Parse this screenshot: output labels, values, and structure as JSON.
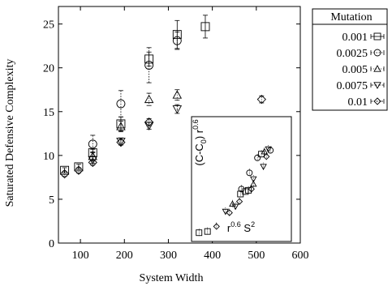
{
  "chart_data": [
    {
      "type": "scatter",
      "title": "",
      "xlabel": "System Width",
      "ylabel": "Saturated Defensive Complexity",
      "xlim": [
        50,
        600
      ],
      "ylim": [
        0,
        27
      ],
      "xticks": [
        100,
        200,
        300,
        400,
        500,
        600
      ],
      "yticks": [
        0,
        5,
        10,
        15,
        20,
        25
      ],
      "grid": false,
      "legend": {
        "title": "Mutation",
        "placement": "outside-right"
      },
      "series": [
        {
          "name": "0.001",
          "marker": "square",
          "points": [
            {
              "x": 64,
              "y": 8.3,
              "err": 0.3
            },
            {
              "x": 96,
              "y": 8.7,
              "err": 0.3
            },
            {
              "x": 128,
              "y": 10.3,
              "err": 0.4
            },
            {
              "x": 192,
              "y": 13.6,
              "err": 0.8
            },
            {
              "x": 256,
              "y": 21.0,
              "err": 0.8
            },
            {
              "x": 320,
              "y": 23.8,
              "err": 1.6
            },
            {
              "x": 384,
              "y": 24.7,
              "err": 1.3
            }
          ]
        },
        {
          "name": "0.0025",
          "marker": "circle",
          "points": [
            {
              "x": 128,
              "y": 11.3,
              "err": 1.0
            },
            {
              "x": 192,
              "y": 15.9,
              "err": 1.5
            },
            {
              "x": 256,
              "y": 20.3,
              "err": 2.0
            },
            {
              "x": 320,
              "y": 23.1,
              "err": 1.0
            }
          ]
        },
        {
          "name": "0.005",
          "marker": "triangle-up",
          "points": [
            {
              "x": 128,
              "y": 9.9,
              "err": 0.5
            },
            {
              "x": 192,
              "y": 13.3,
              "err": 0.6
            },
            {
              "x": 256,
              "y": 16.4,
              "err": 0.7
            },
            {
              "x": 320,
              "y": 16.9,
              "err": 0.6
            }
          ]
        },
        {
          "name": "0.0075",
          "marker": "triangle-down",
          "points": [
            {
              "x": 128,
              "y": 9.5,
              "err": 0.4
            },
            {
              "x": 192,
              "y": 11.6,
              "err": 0.4
            },
            {
              "x": 256,
              "y": 13.4,
              "err": 0.4
            },
            {
              "x": 320,
              "y": 15.3,
              "err": 0.5
            }
          ]
        },
        {
          "name": "0.01",
          "marker": "diamond",
          "points": [
            {
              "x": 64,
              "y": 7.9,
              "err": 0.3
            },
            {
              "x": 96,
              "y": 8.3,
              "err": 0.3
            },
            {
              "x": 128,
              "y": 9.2,
              "err": 0.3
            },
            {
              "x": 192,
              "y": 11.5,
              "err": 0.3
            },
            {
              "x": 256,
              "y": 13.8,
              "err": 0.4
            },
            {
              "x": 512,
              "y": 16.4,
              "err": 0.4
            }
          ]
        }
      ]
    },
    {
      "type": "scatter",
      "role": "inset",
      "xlabel_parts": [
        "r",
        "0.6",
        " S",
        "2"
      ],
      "ylabel_parts": [
        "(C-C",
        "0",
        ") r",
        "0.6"
      ],
      "xlim": [
        0,
        1
      ],
      "ylim": [
        0,
        1
      ],
      "xticks": [],
      "yticks": [],
      "points": [
        {
          "x": 0.075,
          "y": 0.07,
          "marker": "square"
        },
        {
          "x": 0.16,
          "y": 0.08,
          "marker": "square"
        },
        {
          "x": 0.25,
          "y": 0.12,
          "marker": "diamond"
        },
        {
          "x": 0.34,
          "y": 0.24,
          "marker": "triangle-down"
        },
        {
          "x": 0.38,
          "y": 0.23,
          "marker": "diamond"
        },
        {
          "x": 0.41,
          "y": 0.3,
          "marker": "triangle-up"
        },
        {
          "x": 0.44,
          "y": 0.28,
          "marker": "triangle-down"
        },
        {
          "x": 0.48,
          "y": 0.32,
          "marker": "diamond"
        },
        {
          "x": 0.49,
          "y": 0.38,
          "marker": "square"
        },
        {
          "x": 0.5,
          "y": 0.42,
          "marker": "circle"
        },
        {
          "x": 0.54,
          "y": 0.4,
          "marker": "square"
        },
        {
          "x": 0.57,
          "y": 0.41,
          "marker": "square"
        },
        {
          "x": 0.58,
          "y": 0.55,
          "marker": "circle"
        },
        {
          "x": 0.6,
          "y": 0.42,
          "marker": "diamond"
        },
        {
          "x": 0.62,
          "y": 0.46,
          "marker": "triangle-up"
        },
        {
          "x": 0.62,
          "y": 0.5,
          "marker": "triangle-down"
        },
        {
          "x": 0.66,
          "y": 0.67,
          "marker": "circle"
        },
        {
          "x": 0.7,
          "y": 0.7,
          "marker": "square"
        },
        {
          "x": 0.72,
          "y": 0.6,
          "marker": "triangle-down"
        },
        {
          "x": 0.73,
          "y": 0.72,
          "marker": "triangle-up"
        },
        {
          "x": 0.75,
          "y": 0.68,
          "marker": "diamond"
        },
        {
          "x": 0.77,
          "y": 0.74,
          "marker": "triangle-down"
        },
        {
          "x": 0.79,
          "y": 0.73,
          "marker": "circle"
        }
      ]
    }
  ]
}
